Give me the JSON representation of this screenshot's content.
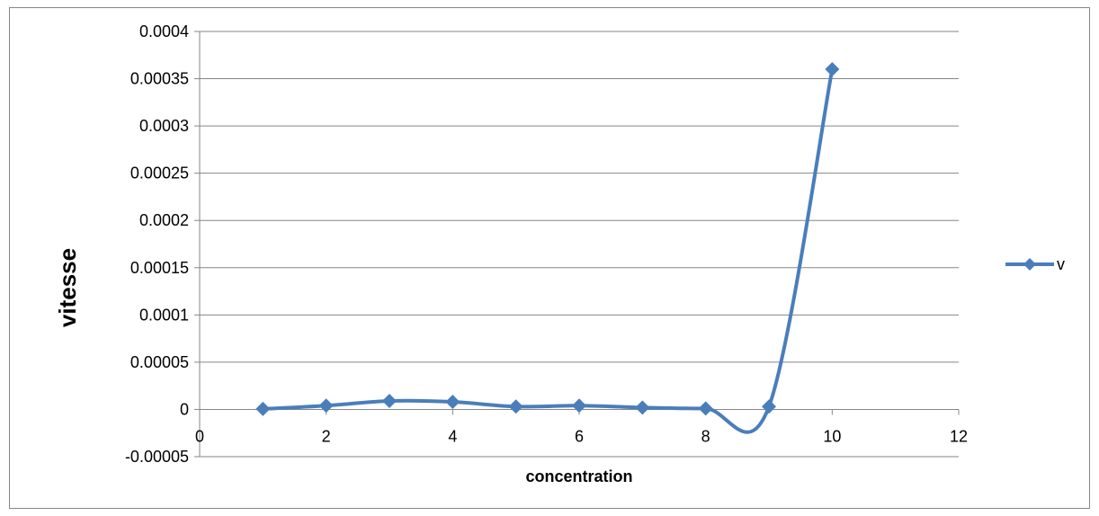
{
  "chart_data": {
    "type": "scatter",
    "title": "",
    "xlabel": "concentration",
    "ylabel": "vitesse",
    "xlim": [
      0,
      12
    ],
    "ylim": [
      -5e-05,
      0.0004
    ],
    "xticks": [
      0,
      2,
      4,
      6,
      8,
      10,
      12
    ],
    "xtick_labels": [
      "0",
      "2",
      "4",
      "6",
      "8",
      "10",
      "12"
    ],
    "yticks": [
      -5e-05,
      0,
      5e-05,
      0.0001,
      0.00015,
      0.0002,
      0.00025,
      0.0003,
      0.00035,
      0.0004
    ],
    "ytick_labels": [
      "-0.00005",
      "0",
      "0.00005",
      "0.0001",
      "0.00015",
      "0.0002",
      "0.00025",
      "0.0003",
      "0.00035",
      "0.0004"
    ],
    "grid": true,
    "legend_position": "right",
    "smooth_line": true,
    "marker": "diamond",
    "series": [
      {
        "name": "v",
        "color": "#4a7ebb",
        "x": [
          1,
          2,
          3,
          4,
          5,
          6,
          7,
          8,
          9,
          10
        ],
        "y": [
          5e-07,
          4e-06,
          9e-06,
          8e-06,
          3e-06,
          4e-06,
          2e-06,
          1e-06,
          3e-06,
          0.00036
        ]
      }
    ]
  }
}
